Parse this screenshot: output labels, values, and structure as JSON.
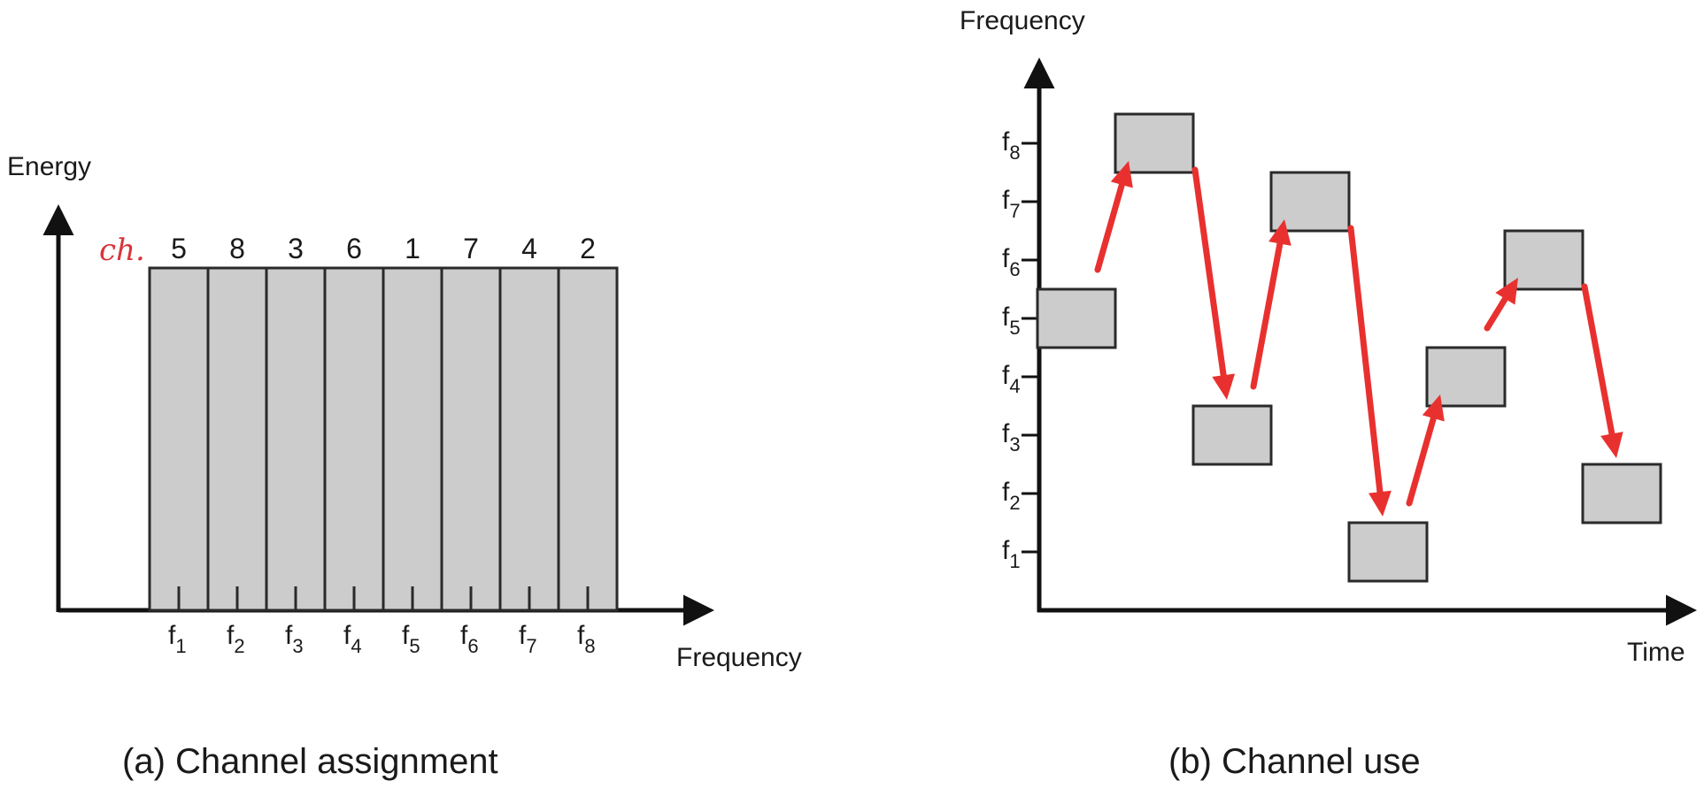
{
  "panel_a": {
    "y_axis_label": "Energy",
    "x_axis_label": "Frequency",
    "annotation": "ch.",
    "caption": "(a) Channel assignment",
    "channels": [
      {
        "freq_base": "f",
        "freq_sub": "1",
        "channel": "5"
      },
      {
        "freq_base": "f",
        "freq_sub": "2",
        "channel": "8"
      },
      {
        "freq_base": "f",
        "freq_sub": "3",
        "channel": "3"
      },
      {
        "freq_base": "f",
        "freq_sub": "4",
        "channel": "6"
      },
      {
        "freq_base": "f",
        "freq_sub": "5",
        "channel": "1"
      },
      {
        "freq_base": "f",
        "freq_sub": "6",
        "channel": "7"
      },
      {
        "freq_base": "f",
        "freq_sub": "7",
        "channel": "4"
      },
      {
        "freq_base": "f",
        "freq_sub": "8",
        "channel": "2"
      }
    ]
  },
  "panel_b": {
    "y_axis_label": "Frequency",
    "x_axis_label": "Time",
    "caption": "(b) Channel use",
    "freq_ticks": [
      {
        "base": "f",
        "sub": "1"
      },
      {
        "base": "f",
        "sub": "2"
      },
      {
        "base": "f",
        "sub": "3"
      },
      {
        "base": "f",
        "sub": "4"
      },
      {
        "base": "f",
        "sub": "5"
      },
      {
        "base": "f",
        "sub": "6"
      },
      {
        "base": "f",
        "sub": "7"
      },
      {
        "base": "f",
        "sub": "8"
      }
    ],
    "hop_sequence": [
      5,
      8,
      3,
      7,
      1,
      4,
      6,
      2
    ]
  },
  "colors": {
    "block_fill": "#cccccc",
    "outline": "#2a2a2a",
    "axis": "#111111",
    "arrow": "#e8312f",
    "annotation": "#d8353b"
  }
}
